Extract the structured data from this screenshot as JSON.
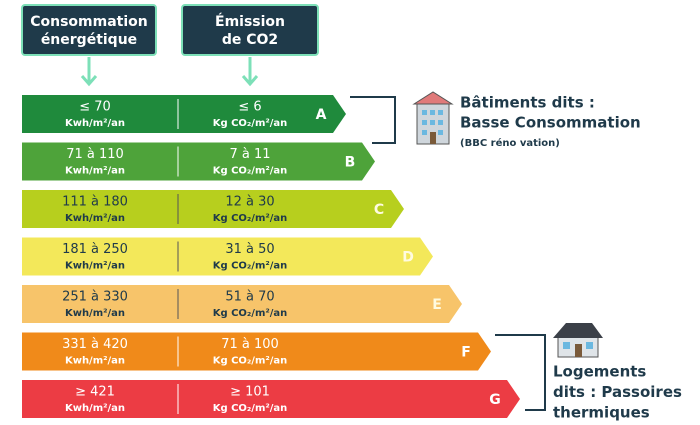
{
  "headers": [
    {
      "lines": [
        "Consommation",
        "énergétique"
      ]
    },
    {
      "lines": [
        "Émission",
        "de CO2"
      ]
    }
  ],
  "rows": [
    {
      "grade": "A",
      "energy": "≤ 70",
      "energy_unit": "Kwh/m²/an",
      "co2": "≤ 6",
      "co2_unit": "Kg CO₂/m²/an"
    },
    {
      "grade": "B",
      "energy": "71 à 110",
      "energy_unit": "Kwh/m²/an",
      "co2": "7 à 11",
      "co2_unit": "Kg CO₂/m²/an"
    },
    {
      "grade": "C",
      "energy": "111 à 180",
      "energy_unit": "Kwh/m²/an",
      "co2": "12 à 30",
      "co2_unit": "Kg CO₂/m²/an"
    },
    {
      "grade": "D",
      "energy": "181 à 250",
      "energy_unit": "Kwh/m²/an",
      "co2": "31 à 50",
      "co2_unit": "Kg CO₂/m²/an"
    },
    {
      "grade": "E",
      "energy": "251 à 330",
      "energy_unit": "Kwh/m²/an",
      "co2": "51 à 70",
      "co2_unit": "Kg CO₂/m²/an"
    },
    {
      "grade": "F",
      "energy": "331 à 420",
      "energy_unit": "Kwh/m²/an",
      "co2": "71 à 100",
      "co2_unit": "Kg CO₂/m²/an"
    },
    {
      "grade": "G",
      "energy": "≥ 421",
      "energy_unit": "Kwh/m²/an",
      "co2": "≥ 101",
      "co2_unit": "Kg CO₂/m²/an"
    }
  ],
  "annotations": {
    "bbc": {
      "lines": [
        "Bâtiments dits :",
        "Basse Consommation"
      ],
      "note": "(BBC réno vation)"
    },
    "passoires": {
      "lines": [
        "Logements",
        "dits : Passoires",
        "thermiques"
      ]
    }
  }
}
